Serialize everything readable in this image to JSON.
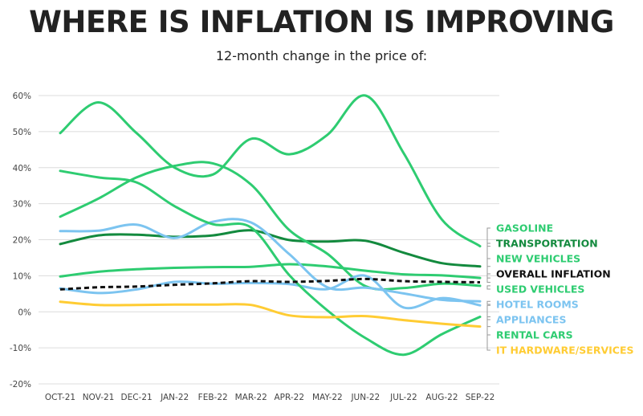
{
  "chart_data": {
    "type": "line",
    "title": "WHERE IS INFLATION IS IMPROVING",
    "subtitle": "12-month change in the price of:",
    "xlabel": "",
    "ylabel": "",
    "x": [
      "OCT-21",
      "NOV-21",
      "DEC-21",
      "JAN-22",
      "FEB-22",
      "MAR-22",
      "APR-22",
      "MAY-22",
      "JUN-22",
      "JUL-22",
      "AUG-22",
      "SEP-22"
    ],
    "ylim": [
      -20,
      60
    ],
    "yticks": [
      -20,
      -10,
      0,
      10,
      20,
      30,
      40,
      50,
      60
    ],
    "ytick_labels": [
      "-20%",
      "-10%",
      "0%",
      "10%",
      "20%",
      "30%",
      "40%",
      "50%",
      "60%"
    ],
    "grid": true,
    "legend_position": "right",
    "series": [
      {
        "name": "GASOLINE",
        "color": "#2ecc71",
        "dashed": false,
        "values": [
          49.6,
          58.1,
          49.6,
          40.0,
          38.1,
          48.0,
          43.7,
          49.1,
          60.0,
          44.0,
          25.6,
          18.2
        ]
      },
      {
        "name": "TRANSPORTATION",
        "color": "#138a3e",
        "dashed": false,
        "values": [
          18.8,
          21.2,
          21.4,
          20.8,
          21.2,
          22.6,
          19.9,
          19.5,
          19.7,
          16.4,
          13.5,
          12.6
        ]
      },
      {
        "name": "NEW VEHICLES",
        "color": "#2ecc71",
        "dashed": false,
        "values": [
          9.8,
          11.1,
          11.8,
          12.2,
          12.4,
          12.5,
          13.2,
          12.6,
          11.4,
          10.4,
          10.1,
          9.4
        ]
      },
      {
        "name": "OVERALL INFLATION",
        "color": "#111111",
        "dashed": true,
        "values": [
          6.2,
          6.8,
          7.0,
          7.5,
          7.9,
          8.5,
          8.3,
          8.6,
          9.1,
          8.5,
          8.3,
          8.2
        ]
      },
      {
        "name": "USED VEHICLES",
        "color": "#2ecc71",
        "dashed": false,
        "values": [
          26.4,
          31.4,
          37.3,
          40.5,
          41.2,
          35.3,
          22.7,
          16.1,
          7.1,
          6.6,
          7.8,
          7.2
        ]
      },
      {
        "name": "HOTEL ROOMS",
        "color": "#7cc4f0",
        "dashed": false,
        "values": [
          22.4,
          22.5,
          24.2,
          20.5,
          25.0,
          24.8,
          16.0,
          6.8,
          6.7,
          5.1,
          3.3,
          2.9
        ]
      },
      {
        "name": "APPLIANCES",
        "color": "#7cc4f0",
        "dashed": false,
        "values": [
          6.5,
          5.2,
          6.2,
          8.3,
          7.8,
          8.0,
          7.7,
          6.3,
          10.0,
          1.2,
          3.8,
          1.8
        ]
      },
      {
        "name": "RENTAL CARS",
        "color": "#2ecc71",
        "dashed": false,
        "values": [
          39.1,
          37.3,
          35.9,
          29.3,
          24.3,
          23.4,
          10.2,
          0.4,
          -7.3,
          -11.9,
          -6.2,
          -1.4
        ]
      },
      {
        "name": "IT HARDWARE/SERVICES",
        "color": "#ffcc33",
        "dashed": false,
        "values": [
          2.8,
          1.9,
          1.9,
          2.0,
          2.0,
          1.9,
          -1.0,
          -1.5,
          -1.2,
          -2.3,
          -3.3,
          -4.1
        ]
      }
    ]
  }
}
